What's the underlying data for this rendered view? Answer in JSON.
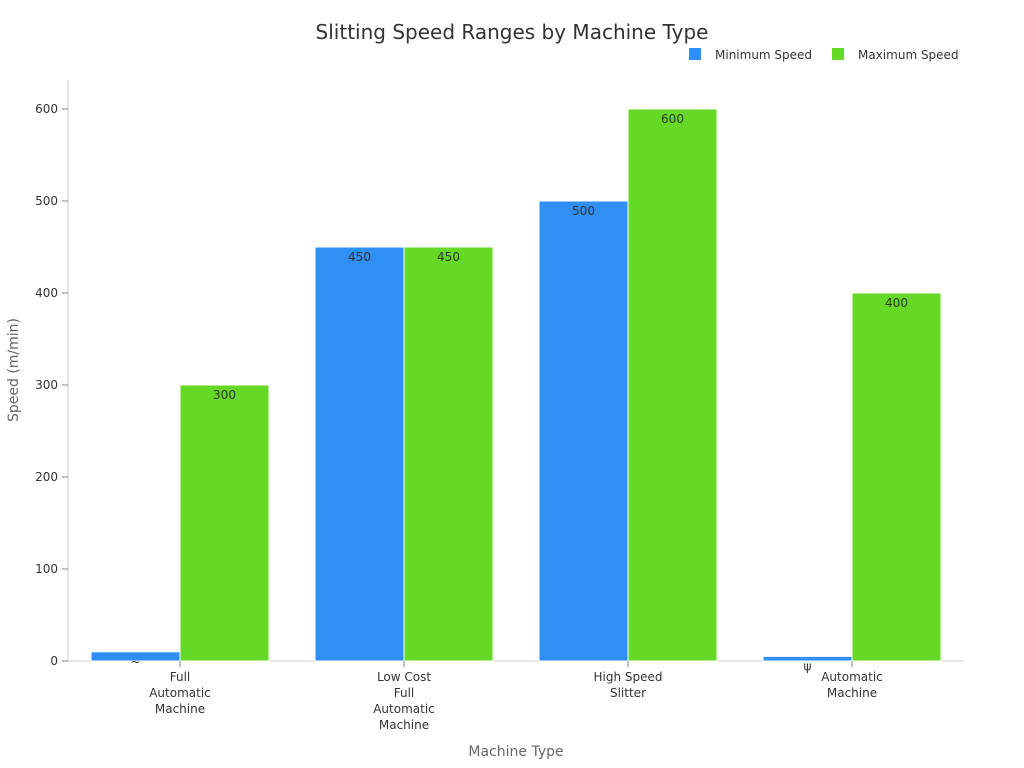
{
  "chart_data": {
    "type": "bar",
    "title": "Slitting Speed Ranges by Machine Type",
    "xlabel": "Machine Type",
    "ylabel": "Speed (m/min)",
    "ylim": [
      0,
      630
    ],
    "yticks": [
      0,
      100,
      200,
      300,
      400,
      500,
      600
    ],
    "grid": false,
    "legend_position": "top-right",
    "categories": [
      [
        "Full",
        "Automatic",
        "Machine"
      ],
      [
        "Low Cost",
        "Full",
        "Automatic",
        "Machine"
      ],
      [
        "High Speed",
        "Slitter"
      ],
      [
        "Automatic",
        "Machine"
      ]
    ],
    "series": [
      {
        "name": "Minimum Speed",
        "color": "#2f8ff5",
        "values": [
          10,
          450,
          500,
          5
        ],
        "labels": [
          "~",
          "450",
          "500",
          "ψ"
        ]
      },
      {
        "name": "Maximum Speed",
        "color": "#66d926",
        "values": [
          300,
          450,
          600,
          400
        ],
        "labels": [
          "300",
          "450",
          "600",
          "400"
        ]
      }
    ]
  }
}
